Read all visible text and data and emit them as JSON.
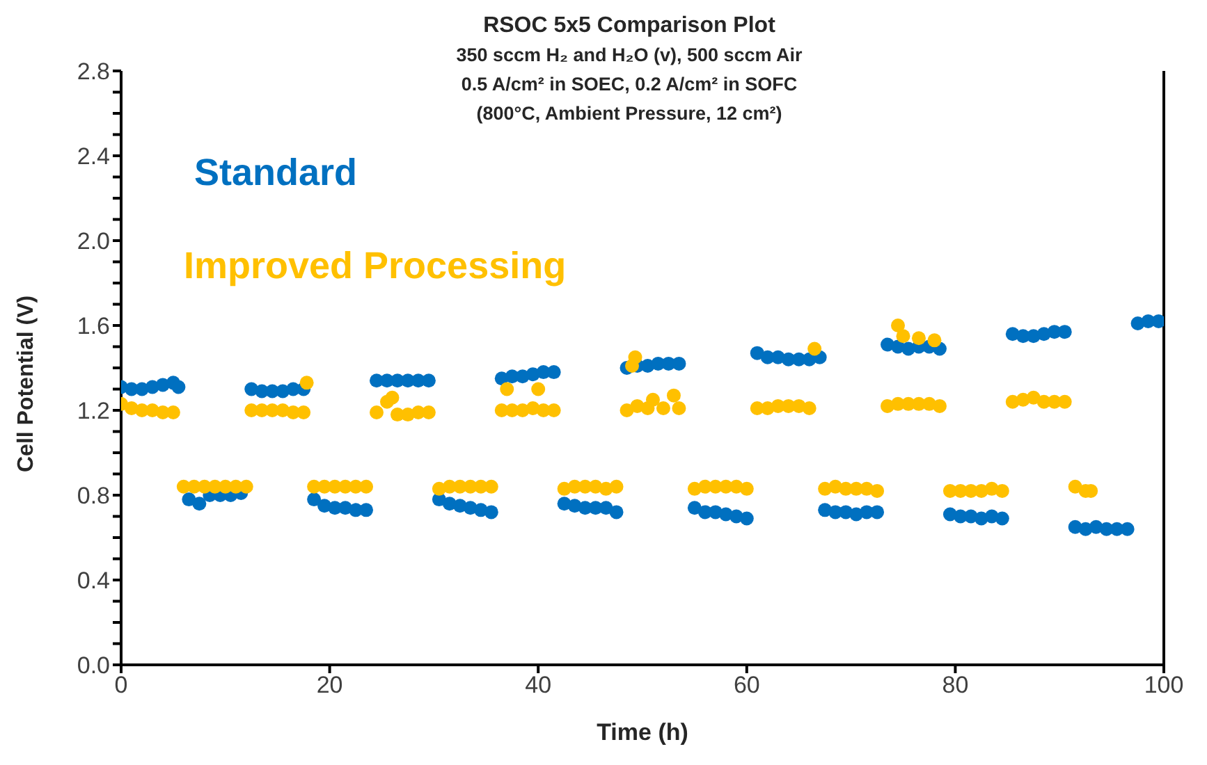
{
  "chart_data": {
    "type": "scatter",
    "title": "RSOC 5x5 Comparison Plot",
    "subtitle": "350 sccm H₂ and H₂O (v), 500 sccm Air\n0.5 A/cm² in SOEC, 0.2 A/cm² in SOFC\n(800°C, Ambient Pressure, 12 cm²)",
    "xlabel": "Time (h)",
    "ylabel": "Cell Potential (V)",
    "xlim": [
      0,
      100
    ],
    "xticks": [
      0,
      20,
      40,
      60,
      80,
      100
    ],
    "ylim": [
      0,
      2.8
    ],
    "yticks": [
      {
        "value": 0,
        "label": "0.0"
      },
      {
        "value": 0.1,
        "label": null
      },
      {
        "value": 0.2,
        "label": null
      },
      {
        "value": 0.3,
        "label": null
      },
      0.4,
      {
        "value": 0.5,
        "label": null
      },
      {
        "value": 0.6,
        "label": null
      },
      {
        "value": 0.7,
        "label": null
      },
      0.8,
      {
        "value": 0.9,
        "label": null
      },
      {
        "value": 1.0,
        "label": null
      },
      {
        "value": 1.1,
        "label": null
      },
      1.2,
      {
        "value": 1.3,
        "label": null
      },
      {
        "value": 1.4,
        "label": null
      },
      {
        "value": 1.5,
        "label": null
      },
      1.6,
      {
        "value": 1.7,
        "label": null
      },
      {
        "value": 1.8,
        "label": null
      },
      {
        "value": 1.9,
        "label": null
      },
      {
        "value": 2.0,
        "label": "2.0"
      },
      {
        "value": 2.1,
        "label": null
      },
      {
        "value": 2.2,
        "label": null
      },
      {
        "value": 2.3,
        "label": null
      },
      2.4,
      {
        "value": 2.5,
        "label": null
      },
      {
        "value": 2.6,
        "label": null
      },
      {
        "value": 2.7,
        "label": null
      },
      2.8
    ],
    "grid": false,
    "legend": false,
    "marker": "circle",
    "series": [
      {
        "name": "Standard",
        "color": "#0070c0",
        "x": [
          0,
          1,
          2,
          3,
          4,
          5,
          5.5,
          6.5,
          7.5,
          8.5,
          9.5,
          10.5,
          11.5,
          12.5,
          13.5,
          14.5,
          15.5,
          16.5,
          17.5,
          18.5,
          19.5,
          20.5,
          21.5,
          22.5,
          23.5,
          24.5,
          25.5,
          26.5,
          27.5,
          28.5,
          29.5,
          30.5,
          31.5,
          32.5,
          33.5,
          34.5,
          35.5,
          36.5,
          37.5,
          38.5,
          39.5,
          40.5,
          41.5,
          42.5,
          43.5,
          44.5,
          45.5,
          46.5,
          47.5,
          48.5,
          49.5,
          50.5,
          51.5,
          52.5,
          53.5,
          55,
          56,
          57,
          58,
          59,
          60,
          61,
          62,
          63,
          64,
          65,
          66,
          67,
          67.5,
          68.5,
          69.5,
          70.5,
          71.5,
          72.5,
          73.5,
          74.5,
          75.5,
          76.5,
          77.5,
          78.5,
          79.5,
          80.5,
          81.5,
          82.5,
          83.5,
          84.5,
          85.5,
          86.5,
          87.5,
          88.5,
          89.5,
          90.5,
          91.5,
          92.5,
          93.5,
          94.5,
          95.5,
          96.5,
          97.5,
          98.5,
          99.5
        ],
        "values": [
          1.31,
          1.3,
          1.3,
          1.31,
          1.32,
          1.33,
          1.31,
          0.78,
          0.76,
          0.8,
          0.8,
          0.8,
          0.81,
          1.3,
          1.29,
          1.29,
          1.29,
          1.3,
          1.3,
          0.78,
          0.75,
          0.74,
          0.74,
          0.73,
          0.73,
          1.34,
          1.34,
          1.34,
          1.34,
          1.34,
          1.34,
          0.78,
          0.76,
          0.75,
          0.74,
          0.73,
          0.72,
          1.35,
          1.36,
          1.36,
          1.37,
          1.38,
          1.38,
          0.76,
          0.75,
          0.74,
          0.74,
          0.74,
          0.72,
          1.4,
          1.41,
          1.41,
          1.42,
          1.42,
          1.42,
          0.74,
          0.72,
          0.72,
          0.71,
          0.7,
          0.69,
          1.47,
          1.45,
          1.45,
          1.44,
          1.44,
          1.44,
          1.45,
          0.73,
          0.72,
          0.72,
          0.71,
          0.72,
          0.72,
          1.51,
          1.5,
          1.49,
          1.5,
          1.5,
          1.49,
          0.71,
          0.7,
          0.7,
          0.69,
          0.7,
          0.69,
          1.56,
          1.55,
          1.55,
          1.56,
          1.57,
          1.57,
          0.65,
          0.64,
          0.65,
          0.64,
          0.64,
          0.64,
          1.61,
          1.62,
          1.62
        ]
      },
      {
        "name": "Improved Processing",
        "color": "#ffc000",
        "x": [
          0,
          1,
          2,
          3,
          4,
          5,
          6,
          7,
          8,
          9,
          10,
          11,
          12,
          12.5,
          13.5,
          14.5,
          15.5,
          16.5,
          17.5,
          17.8,
          18.5,
          19.5,
          20.5,
          21.5,
          22.5,
          23.5,
          24.5,
          25.5,
          26,
          26.5,
          27.5,
          28.5,
          29.5,
          30.5,
          31.5,
          32.5,
          33.5,
          34.5,
          35.5,
          36.5,
          37,
          37.5,
          38.5,
          39.5,
          40,
          40.5,
          41.5,
          42.5,
          43.5,
          44.5,
          45.5,
          46.5,
          47.5,
          48.5,
          49,
          49.3,
          49.5,
          50.5,
          51,
          52,
          53,
          53.5,
          55,
          56,
          57,
          58,
          59,
          60,
          61,
          62,
          63,
          64,
          65,
          66,
          66.5,
          67.5,
          68.5,
          69.5,
          70.5,
          71.5,
          72.5,
          73.5,
          74.5,
          74.5,
          75,
          75.5,
          76.5,
          76.5,
          77.5,
          78,
          78.5,
          79.5,
          80.5,
          81.5,
          82.5,
          83.5,
          84.5,
          85.5,
          86.5,
          87.5,
          88.5,
          89.5,
          90.5,
          91.5,
          92.5,
          93
        ],
        "values": [
          1.23,
          1.21,
          1.2,
          1.2,
          1.19,
          1.19,
          0.84,
          0.84,
          0.84,
          0.84,
          0.84,
          0.84,
          0.84,
          1.2,
          1.2,
          1.2,
          1.2,
          1.19,
          1.19,
          1.33,
          0.84,
          0.84,
          0.84,
          0.84,
          0.84,
          0.84,
          1.19,
          1.24,
          1.26,
          1.18,
          1.18,
          1.19,
          1.19,
          0.83,
          0.84,
          0.84,
          0.84,
          0.84,
          0.84,
          1.2,
          1.3,
          1.2,
          1.2,
          1.21,
          1.3,
          1.2,
          1.2,
          0.83,
          0.84,
          0.84,
          0.84,
          0.83,
          0.84,
          1.2,
          1.41,
          1.45,
          1.22,
          1.21,
          1.25,
          1.21,
          1.27,
          1.21,
          0.83,
          0.84,
          0.84,
          0.84,
          0.84,
          0.83,
          1.21,
          1.21,
          1.22,
          1.22,
          1.22,
          1.21,
          1.49,
          0.83,
          0.84,
          0.83,
          0.83,
          0.83,
          0.82,
          1.22,
          1.23,
          1.6,
          1.55,
          1.23,
          1.23,
          1.54,
          1.23,
          1.53,
          1.22,
          0.82,
          0.82,
          0.82,
          0.82,
          0.83,
          0.82,
          1.24,
          1.25,
          1.26,
          1.24,
          1.24,
          1.24,
          0.84,
          0.82,
          0.82
        ]
      }
    ]
  }
}
